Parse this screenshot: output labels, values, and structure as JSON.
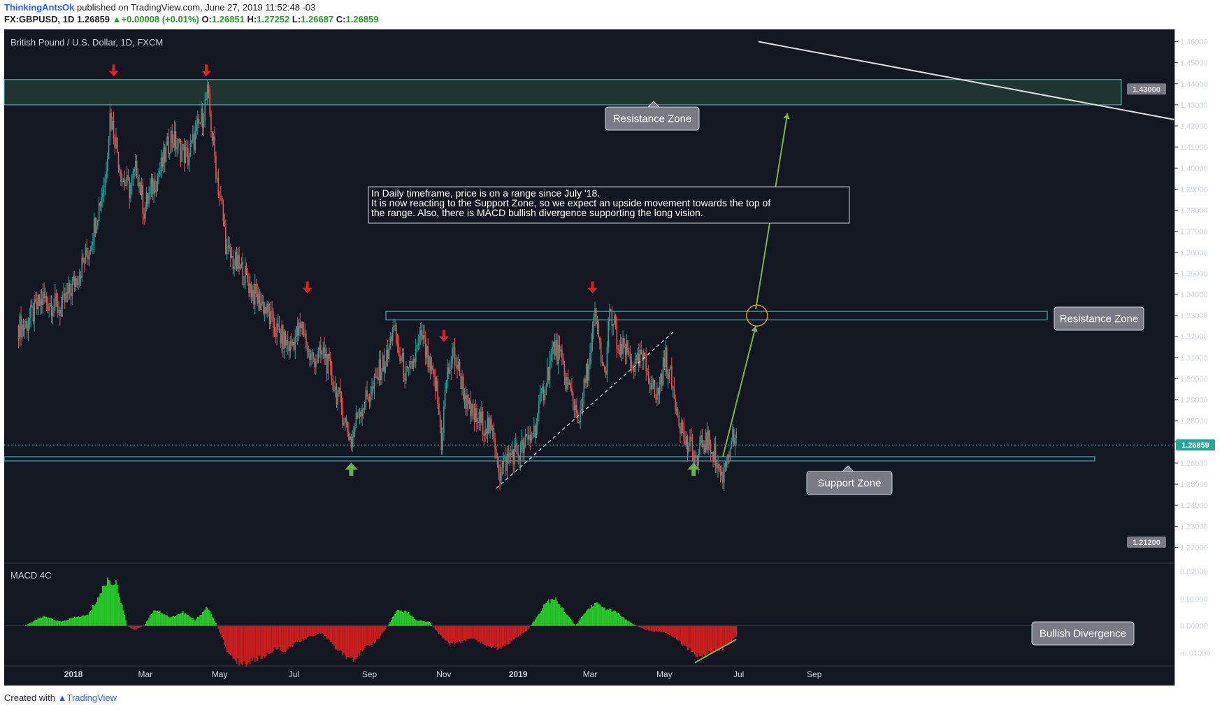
{
  "header": {
    "author": "ThinkingAntsOk",
    "published": "published on TradingView.com, June 27, 2019 11:52:48 -03",
    "symbol": "FX:GBPUSD, 1D",
    "last": "1.26859",
    "change": "+0.00008 (+0.01%)",
    "o_label": "O:",
    "o": "1.26851",
    "h_label": "H:",
    "h": "1.27252",
    "l_label": "L:",
    "l": "1.26687",
    "c_label": "C:",
    "c": "1.26859"
  },
  "footer": {
    "created": "Created with",
    "brand": "TradingView"
  },
  "chart_data": {
    "type": "candlestick",
    "title": "British Pound / U.S. Dollar, 1D, FXCM",
    "ylim": [
      1.2175,
      1.4625
    ],
    "yticks": [
      "1.46000",
      "1.45000",
      "1.44000",
      "1.43000",
      "1.42000",
      "1.41000",
      "1.40000",
      "1.39000",
      "1.38000",
      "1.37000",
      "1.36000",
      "1.35000",
      "1.34000",
      "1.33000",
      "1.32000",
      "1.31000",
      "1.30000",
      "1.29000",
      "1.28000",
      "1.27000",
      "1.26000",
      "1.25000",
      "1.24000",
      "1.23000",
      "1.22000"
    ],
    "xticks": [
      {
        "label": "2018",
        "t": 0.0
      },
      {
        "label": "Mar",
        "t": 59
      },
      {
        "label": "May",
        "t": 120
      },
      {
        "label": "Jul",
        "t": 181
      },
      {
        "label": "Sep",
        "t": 243
      },
      {
        "label": "Nov",
        "t": 304
      },
      {
        "label": "2019",
        "t": 365
      },
      {
        "label": "Mar",
        "t": 424
      },
      {
        "label": "May",
        "t": 485
      },
      {
        "label": "Jul",
        "t": 546
      },
      {
        "label": "Sep",
        "t": 608
      }
    ],
    "price_path": [
      [
        -40,
        1.325
      ],
      [
        -25,
        1.338
      ],
      [
        -10,
        1.333
      ],
      [
        0,
        1.345
      ],
      [
        12,
        1.36
      ],
      [
        20,
        1.38
      ],
      [
        26,
        1.395
      ],
      [
        30,
        1.425
      ],
      [
        34,
        1.415
      ],
      [
        40,
        1.395
      ],
      [
        46,
        1.39
      ],
      [
        52,
        1.4
      ],
      [
        58,
        1.38
      ],
      [
        64,
        1.39
      ],
      [
        72,
        1.4
      ],
      [
        80,
        1.415
      ],
      [
        86,
        1.41
      ],
      [
        94,
        1.405
      ],
      [
        100,
        1.415
      ],
      [
        106,
        1.425
      ],
      [
        110,
        1.435
      ],
      [
        114,
        1.415
      ],
      [
        118,
        1.395
      ],
      [
        122,
        1.38
      ],
      [
        126,
        1.36
      ],
      [
        132,
        1.355
      ],
      [
        140,
        1.35
      ],
      [
        148,
        1.34
      ],
      [
        156,
        1.335
      ],
      [
        164,
        1.325
      ],
      [
        170,
        1.32
      ],
      [
        178,
        1.315
      ],
      [
        182,
        1.32
      ],
      [
        188,
        1.325
      ],
      [
        194,
        1.31
      ],
      [
        200,
        1.31
      ],
      [
        206,
        1.312
      ],
      [
        212,
        1.3
      ],
      [
        218,
        1.29
      ],
      [
        224,
        1.278
      ],
      [
        228,
        1.27
      ],
      [
        234,
        1.285
      ],
      [
        240,
        1.29
      ],
      [
        246,
        1.295
      ],
      [
        252,
        1.305
      ],
      [
        258,
        1.31
      ],
      [
        262,
        1.325
      ],
      [
        268,
        1.31
      ],
      [
        274,
        1.3
      ],
      [
        280,
        1.31
      ],
      [
        286,
        1.32
      ],
      [
        292,
        1.305
      ],
      [
        298,
        1.295
      ],
      [
        302,
        1.27
      ],
      [
        306,
        1.3
      ],
      [
        312,
        1.312
      ],
      [
        318,
        1.3
      ],
      [
        324,
        1.285
      ],
      [
        332,
        1.28
      ],
      [
        340,
        1.278
      ],
      [
        346,
        1.27
      ],
      [
        350,
        1.255
      ],
      [
        354,
        1.26
      ],
      [
        360,
        1.265
      ],
      [
        366,
        1.265
      ],
      [
        372,
        1.27
      ],
      [
        378,
        1.275
      ],
      [
        384,
        1.29
      ],
      [
        390,
        1.305
      ],
      [
        394,
        1.315
      ],
      [
        398,
        1.312
      ],
      [
        404,
        1.3
      ],
      [
        410,
        1.29
      ],
      [
        416,
        1.28
      ],
      [
        420,
        1.3
      ],
      [
        424,
        1.31
      ],
      [
        428,
        1.33
      ],
      [
        432,
        1.315
      ],
      [
        436,
        1.3
      ],
      [
        440,
        1.33
      ],
      [
        444,
        1.325
      ],
      [
        448,
        1.31
      ],
      [
        452,
        1.315
      ],
      [
        456,
        1.31
      ],
      [
        462,
        1.305
      ],
      [
        466,
        1.31
      ],
      [
        470,
        1.305
      ],
      [
        474,
        1.3
      ],
      [
        478,
        1.29
      ],
      [
        482,
        1.3
      ],
      [
        486,
        1.31
      ],
      [
        490,
        1.3
      ],
      [
        494,
        1.29
      ],
      [
        498,
        1.28
      ],
      [
        502,
        1.27
      ],
      [
        508,
        1.265
      ],
      [
        512,
        1.26
      ],
      [
        516,
        1.27
      ],
      [
        520,
        1.27
      ],
      [
        524,
        1.268
      ],
      [
        528,
        1.26
      ],
      [
        532,
        1.253
      ],
      [
        536,
        1.262
      ],
      [
        540,
        1.272
      ],
      [
        544,
        1.269
      ]
    ],
    "macd_path": [
      [
        -40,
        0.0
      ],
      [
        -25,
        0.0035
      ],
      [
        -10,
        0.0015
      ],
      [
        0,
        0.003
      ],
      [
        12,
        0.004
      ],
      [
        20,
        0.01
      ],
      [
        28,
        0.017
      ],
      [
        36,
        0.015
      ],
      [
        44,
        0.0
      ],
      [
        50,
        -0.0015
      ],
      [
        58,
        0.0
      ],
      [
        66,
        0.006
      ],
      [
        72,
        0.005
      ],
      [
        80,
        0.003
      ],
      [
        90,
        0.005
      ],
      [
        100,
        0.002
      ],
      [
        110,
        0.007
      ],
      [
        118,
        0.0
      ],
      [
        126,
        -0.009
      ],
      [
        134,
        -0.013
      ],
      [
        142,
        -0.014
      ],
      [
        150,
        -0.012
      ],
      [
        158,
        -0.011
      ],
      [
        166,
        -0.008
      ],
      [
        174,
        -0.009
      ],
      [
        184,
        -0.006
      ],
      [
        194,
        -0.004
      ],
      [
        204,
        -0.0025
      ],
      [
        212,
        -0.0065
      ],
      [
        222,
        -0.011
      ],
      [
        230,
        -0.012
      ],
      [
        240,
        -0.008
      ],
      [
        250,
        -0.005
      ],
      [
        258,
        0.0
      ],
      [
        266,
        0.006
      ],
      [
        274,
        0.005
      ],
      [
        282,
        0.002
      ],
      [
        292,
        0.0015
      ],
      [
        300,
        -0.003
      ],
      [
        308,
        -0.0065
      ],
      [
        318,
        -0.006
      ],
      [
        328,
        -0.0045
      ],
      [
        338,
        -0.007
      ],
      [
        346,
        -0.0085
      ],
      [
        356,
        -0.007
      ],
      [
        364,
        -0.004
      ],
      [
        372,
        -0.002
      ],
      [
        380,
        0.003
      ],
      [
        388,
        0.009
      ],
      [
        396,
        0.0095
      ],
      [
        404,
        0.005
      ],
      [
        412,
        0.0
      ],
      [
        420,
        0.005
      ],
      [
        428,
        0.0085
      ],
      [
        436,
        0.0065
      ],
      [
        446,
        0.005
      ],
      [
        454,
        0.002
      ],
      [
        462,
        0.0
      ],
      [
        470,
        -0.0015
      ],
      [
        478,
        -0.002
      ],
      [
        486,
        -0.0025
      ],
      [
        494,
        -0.0045
      ],
      [
        502,
        -0.0075
      ],
      [
        510,
        -0.0105
      ],
      [
        518,
        -0.011
      ],
      [
        526,
        -0.009
      ],
      [
        534,
        -0.008
      ],
      [
        544,
        -0.004
      ]
    ],
    "macd_ylim": [
      -0.0155,
      0.0205
    ],
    "macd_label": "MACD 4C",
    "macd_yticks": [
      "0.02000",
      "0.01000",
      "0.00000",
      "-0.01000"
    ],
    "axis_badges": {
      "current": "1.26859",
      "top": "1.43000",
      "bottom": "1.21200"
    },
    "annotations": {
      "note": [
        "In Daily timeframe, price is on a range since July '18.",
        "It is now reacting to the Support Zone, so we expect an upside movement towards the top of",
        "the range. Also, there is MACD bullish divergence supporting the long vision."
      ],
      "resistance_top": "Resistance Zone",
      "resistance_mid": "Resistance Zone",
      "support": "Support Zone",
      "divergence": "Bullish Divergence"
    },
    "zones": {
      "top": [
        1.43,
        1.442
      ],
      "mid": [
        1.328,
        1.332
      ],
      "support": [
        1.261,
        1.263
      ]
    }
  }
}
